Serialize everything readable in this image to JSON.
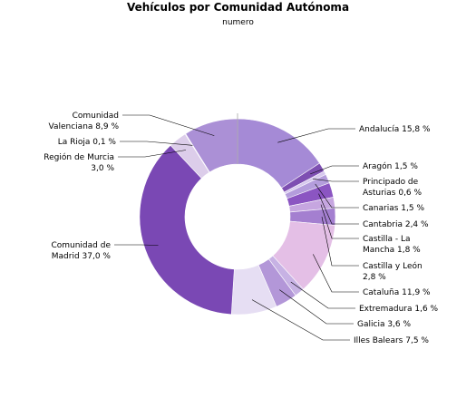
{
  "chart_data": {
    "type": "pie",
    "title": "Vehículos por Comunidad Autónoma",
    "subtitle": "numero",
    "slices": [
      {
        "name": "Andalucía",
        "value": 15.8,
        "label_lines": [
          "Andalucía 15,8 %"
        ],
        "color": "#a58ad6"
      },
      {
        "name": "Aragón",
        "value": 1.5,
        "label_lines": [
          "Aragón 1,5 %"
        ],
        "color": "#7e4fb2"
      },
      {
        "name": "Principado de Asturias",
        "value": 0.6,
        "label_lines": [
          "Principado de",
          "Asturias 0,6 %"
        ],
        "color": "#d6c8ee"
      },
      {
        "name": "Canarias",
        "value": 1.5,
        "label_lines": [
          "Canarias 1,5 %"
        ],
        "color": "#b49ddc"
      },
      {
        "name": "Cantabria",
        "value": 2.4,
        "label_lines": [
          "Cantabria 2,4 %"
        ],
        "color": "#8b55c2"
      },
      {
        "name": "Castilla - La Mancha",
        "value": 1.8,
        "label_lines": [
          "Castilla - La",
          "Mancha 1,8 %"
        ],
        "color": "#c6a6e0"
      },
      {
        "name": "Castilla y León",
        "value": 2.8,
        "label_lines": [
          "Castilla y León",
          "2,8 %"
        ],
        "color": "#a47fd0"
      },
      {
        "name": "Cataluña",
        "value": 11.9,
        "label_lines": [
          "Cataluña 11,9 %"
        ],
        "color": "#e4bfe6"
      },
      {
        "name": "Extremadura",
        "value": 1.6,
        "label_lines": [
          "Extremadura 1,6 %"
        ],
        "color": "#c7b2e4"
      },
      {
        "name": "Galicia",
        "value": 3.6,
        "label_lines": [
          "Galicia 3,6 %"
        ],
        "color": "#b397d8"
      },
      {
        "name": "Illes Balears",
        "value": 7.5,
        "label_lines": [
          "Illes Balears 7,5 %"
        ],
        "color": "#e6def3"
      },
      {
        "name": "Comunidad de Madrid",
        "value": 37.0,
        "label_lines": [
          "Comunidad de",
          "Madrid 37,0 %"
        ],
        "color": "#7a48b4"
      },
      {
        "name": "Región de Murcia",
        "value": 3.0,
        "label_lines": [
          "Región de Murcia",
          "3,0 %"
        ],
        "color": "#dccdea"
      },
      {
        "name": "La Rioja",
        "value": 0.1,
        "label_lines": [
          "La Rioja 0,1 %"
        ],
        "color": "#c0a8de"
      },
      {
        "name": "Comunidad Valenciana",
        "value": 8.9,
        "label_lines": [
          "Comunidad",
          "Valenciana 8,9 %"
        ],
        "color": "#ab90d6"
      }
    ]
  }
}
